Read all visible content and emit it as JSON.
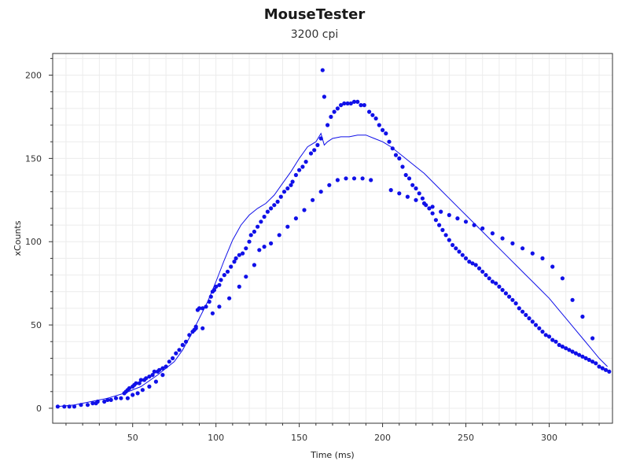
{
  "chart_data": {
    "type": "scatter",
    "title": "MouseTester",
    "subtitle": "3200 cpi",
    "xlabel": "Time (ms)",
    "ylabel": "xCounts",
    "xlim": [
      2,
      338
    ],
    "ylim": [
      -9,
      213
    ],
    "x_ticks": [
      50,
      100,
      150,
      200,
      250,
      300
    ],
    "y_ticks": [
      0,
      50,
      100,
      150,
      200
    ],
    "grid": true,
    "colors": {
      "series": "#1010e8",
      "grid": "#ececec",
      "axis": "#333333"
    },
    "series": [
      {
        "kind": "points",
        "x": [
          5,
          9,
          12,
          15,
          19,
          23,
          26,
          28,
          29,
          33,
          35,
          37,
          40,
          43,
          45,
          46,
          47,
          48,
          50,
          51,
          52,
          54,
          55,
          57,
          58,
          60,
          62,
          63,
          65,
          66,
          68,
          70,
          72,
          74,
          76,
          78,
          80,
          82,
          84,
          86,
          87,
          88,
          89,
          90,
          92,
          94,
          96,
          97,
          98,
          99,
          100,
          102,
          103,
          105,
          107,
          109,
          111,
          112,
          114,
          116,
          118,
          120,
          121,
          123,
          125,
          127,
          129,
          131,
          133,
          135,
          137,
          139,
          141,
          143,
          145,
          146,
          148,
          150,
          152,
          154,
          157,
          159,
          161,
          163,
          164,
          165,
          167,
          169,
          171,
          173,
          175,
          177,
          179,
          181,
          183,
          185,
          187,
          189,
          192,
          194,
          196,
          198,
          200,
          202,
          204,
          206,
          208,
          210,
          212,
          214,
          216,
          218,
          220,
          222,
          224,
          226,
          228,
          230,
          232,
          234,
          236,
          238,
          240,
          242,
          244,
          246,
          248,
          250,
          252,
          254,
          256,
          258,
          260,
          262,
          264,
          266,
          268,
          270,
          272,
          274,
          276,
          278,
          280,
          282,
          284,
          286,
          288,
          290,
          292,
          294,
          296,
          298,
          300,
          302,
          304,
          306,
          308,
          310,
          312,
          314,
          316,
          318,
          320,
          322,
          324,
          326,
          328,
          330,
          332,
          334,
          336
        ],
        "y": [
          1,
          1,
          1,
          1,
          2,
          2,
          3,
          3,
          4,
          4,
          5,
          5,
          6,
          6,
          9,
          10,
          11,
          12,
          13,
          14,
          15,
          15,
          17,
          17,
          18,
          19,
          20,
          22,
          22,
          23,
          24,
          25,
          28,
          30,
          33,
          35,
          38,
          40,
          44,
          46,
          47,
          49,
          59,
          60,
          60,
          61,
          64,
          67,
          70,
          71,
          73,
          74,
          77,
          80,
          82,
          85,
          88,
          90,
          92,
          93,
          96,
          100,
          104,
          106,
          109,
          112,
          115,
          118,
          120,
          122,
          124,
          127,
          130,
          132,
          134,
          136,
          140,
          143,
          145,
          148,
          153,
          155,
          158,
          162,
          203,
          187,
          170,
          175,
          178,
          180,
          182,
          183,
          183,
          183,
          184,
          184,
          182,
          182,
          178,
          176,
          174,
          170,
          167,
          165,
          160,
          156,
          152,
          150,
          145,
          140,
          138,
          134,
          132,
          129,
          126,
          122,
          120,
          117,
          113,
          110,
          107,
          104,
          101,
          98,
          96,
          94,
          92,
          90,
          88,
          87,
          86,
          84,
          82,
          80,
          78,
          76,
          75,
          73,
          71,
          69,
          67,
          65,
          63,
          60,
          58,
          56,
          54,
          52,
          50,
          48,
          46,
          44,
          43,
          41,
          40,
          38,
          37,
          36,
          35,
          34,
          33,
          32,
          31,
          30,
          29,
          28,
          27,
          25,
          24,
          23,
          22
        ],
        "marker": "dot"
      },
      {
        "kind": "points",
        "x": [
          47,
          50,
          53,
          56,
          60,
          64,
          68,
          88,
          92,
          98,
          102,
          108,
          114,
          118,
          123,
          126,
          129,
          133,
          138,
          143,
          148,
          153,
          158,
          163,
          168,
          173,
          178,
          183,
          188,
          193,
          205,
          210,
          215,
          220,
          225,
          230,
          235,
          240,
          245,
          250,
          255,
          260,
          266,
          272,
          278,
          284,
          290,
          296,
          302,
          308,
          314,
          320,
          326
        ],
        "y": [
          6,
          8,
          9,
          11,
          13,
          16,
          20,
          48,
          48,
          57,
          61,
          66,
          73,
          79,
          86,
          95,
          97,
          99,
          104,
          109,
          114,
          119,
          125,
          130,
          134,
          137,
          138,
          138,
          138,
          137,
          131,
          129,
          127,
          125,
          123,
          121,
          118,
          116,
          114,
          112,
          110,
          108,
          105,
          102,
          99,
          96,
          93,
          90,
          85,
          78,
          65,
          55,
          42
        ],
        "marker": "dot"
      },
      {
        "kind": "line",
        "x": [
          5,
          15,
          25,
          35,
          45,
          55,
          65,
          75,
          80,
          85,
          90,
          95,
          100,
          105,
          110,
          115,
          120,
          125,
          130,
          135,
          140,
          145,
          150,
          155,
          160,
          163,
          165,
          167,
          170,
          175,
          180,
          185,
          190,
          195,
          200,
          205,
          210,
          215,
          220,
          225,
          230,
          235,
          240,
          245,
          250,
          255,
          260,
          265,
          270,
          275,
          280,
          285,
          290,
          295,
          300,
          305,
          310,
          315,
          320,
          325,
          330,
          335
        ],
        "y": [
          1,
          2,
          4,
          6,
          9,
          13,
          20,
          28,
          35,
          44,
          54,
          64,
          76,
          89,
          101,
          110,
          116,
          120,
          123,
          128,
          135,
          142,
          150,
          157,
          160,
          165,
          158,
          160,
          162,
          163,
          163,
          164,
          164,
          162,
          160,
          157,
          153,
          149,
          145,
          141,
          136,
          131,
          126,
          121,
          116,
          111,
          106,
          101,
          96,
          91,
          86,
          81,
          76,
          71,
          66,
          60,
          54,
          48,
          42,
          36,
          30,
          25
        ],
        "marker": "none"
      }
    ]
  }
}
